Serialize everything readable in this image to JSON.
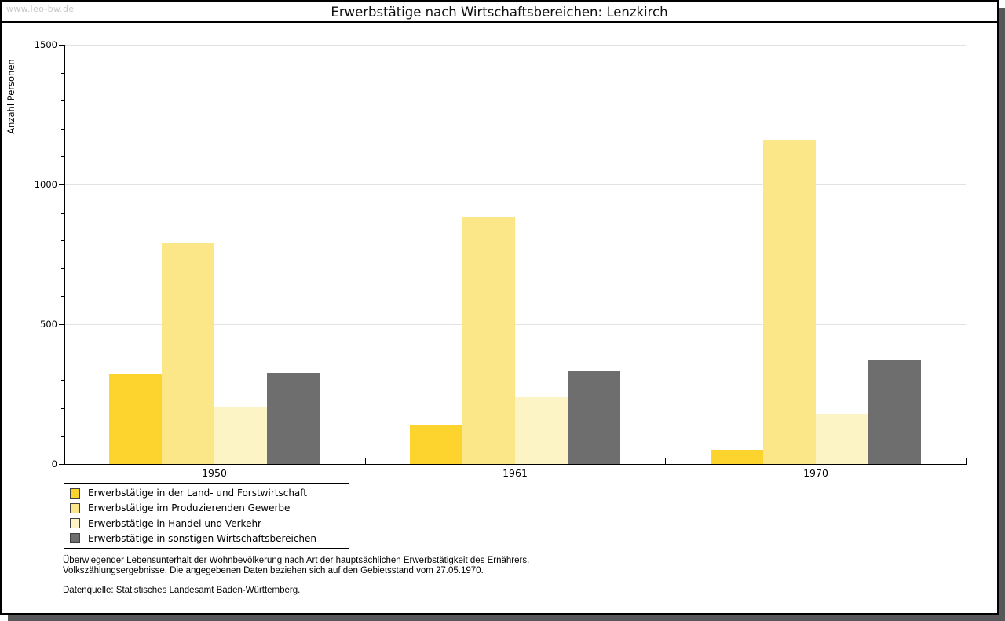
{
  "watermark": "www.leo-bw.de",
  "header": {
    "title": "Erwerbstätige nach Wirtschaftsbereichen: Lenzkirch"
  },
  "chart_data": {
    "type": "bar",
    "title": "Erwerbstätige nach Wirtschaftsbereichen: Lenzkirch",
    "xlabel": "",
    "ylabel": "Anzahl Personen",
    "ylim": [
      0,
      1500
    ],
    "ytick_step_major": 500,
    "ytick_step_minor": 100,
    "ytick_labels": [
      "0",
      "500",
      "1000",
      "1500"
    ],
    "grid": "horizontal-major",
    "legend_position": "bottom-left",
    "categories": [
      "1950",
      "1961",
      "1970"
    ],
    "series": [
      {
        "name": "Erwerbstätige in der Land- und Forstwirtschaft",
        "color": "#FDD32E",
        "values": [
          320,
          140,
          50
        ]
      },
      {
        "name": "Erwerbstätige im Produzierenden Gewerbe",
        "color": "#FCE788",
        "values": [
          790,
          885,
          1160
        ]
      },
      {
        "name": "Erwerbstätige in Handel und Verkehr",
        "color": "#FCF4C4",
        "values": [
          205,
          240,
          180
        ]
      },
      {
        "name": "Erwerbstätige in sonstigen Wirtschaftsbereichen",
        "color": "#6E6E6E",
        "values": [
          325,
          335,
          370
        ]
      }
    ]
  },
  "footnotes": {
    "line1": "Überwiegender Lebensunterhalt der Wohnbevölkerung nach Art der hauptsächlichen Erwerbstätigkeit des Ernährers.",
    "line2": "Volkszählungsergebnisse. Die angegebenen Daten beziehen sich auf den Gebietsstand vom 27.05.1970.",
    "source": "Datenquelle: Statistisches Landesamt Baden-Württemberg."
  },
  "colors": {
    "grid": "#E2E2E2",
    "axis": "#000000",
    "watermark": "#C8C8C8",
    "frame_shadow": "#58585A",
    "title_text": "#101010"
  }
}
